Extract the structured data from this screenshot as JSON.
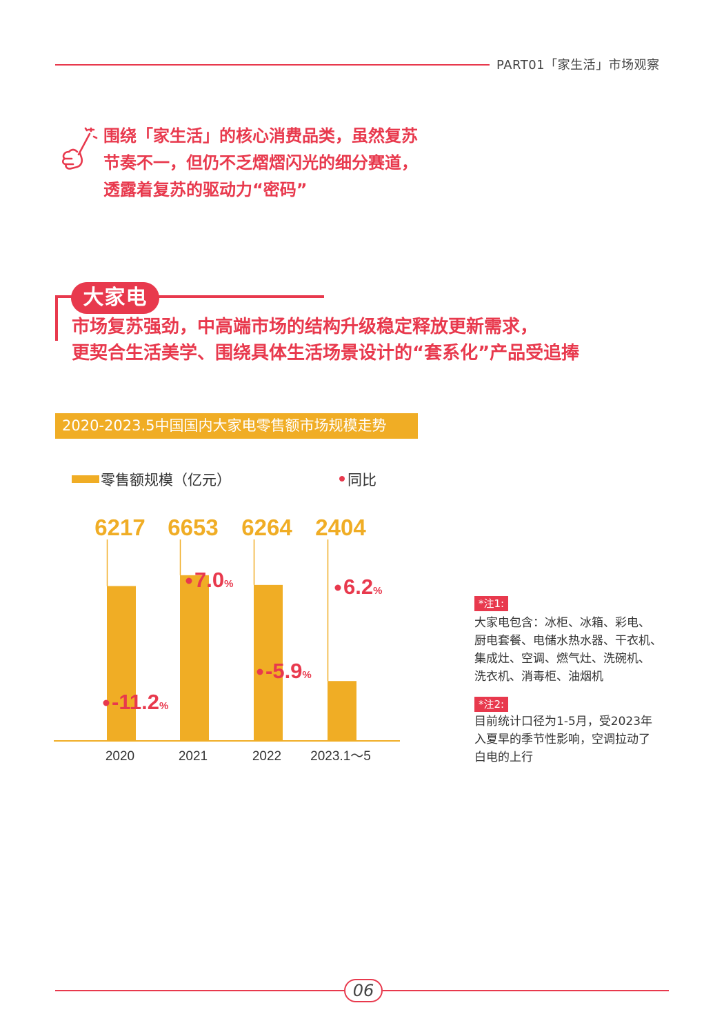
{
  "header": {
    "text": "PART01「家生活」市场观察"
  },
  "intro": {
    "lines": [
      "围绕「家生活」的核心消费品类，虽然复苏",
      "节奏不一，但仍不乏熠熠闪光的细分赛道，",
      "透露着复苏的驱动力“密码”"
    ]
  },
  "section": {
    "title": "大家电",
    "lines": [
      "市场复苏强劲，中高端市场的结构升级稳定释放更新需求，",
      "更契合生活美学、围绕具体生活场景设计的“套系化”产品受追捧"
    ]
  },
  "chart_title": "2020-2023.5中国国内大家电零售额市场规模走势",
  "legend": {
    "bar_label": "零售额规模（亿元）",
    "dot_label": "同比"
  },
  "colors": {
    "accent": "#e8394d",
    "bar": "#f0ad25"
  },
  "chart_data": {
    "type": "bar",
    "categories": [
      "2020",
      "2021",
      "2022",
      "2023.1～5"
    ],
    "series": [
      {
        "name": "零售额规模（亿元）",
        "values": [
          6217,
          6653,
          6264,
          2404
        ],
        "labels": [
          "6217",
          "6653",
          "6264",
          "2404"
        ]
      },
      {
        "name": "同比",
        "values": [
          -11.2,
          7.0,
          -5.9,
          6.2
        ],
        "labels": [
          "-11.2",
          "7.0",
          "-5.9",
          "6.2"
        ],
        "unit": "%"
      }
    ]
  },
  "notes": [
    {
      "tag": "*注1:",
      "lines": [
        "大家电包含：冰柜、冰箱、彩电、",
        "厨电套餐、电储水热水器、干衣机、",
        "集成灶、空调、燃气灶、洗碗机、",
        "洗衣机、消毒柜、油烟机"
      ]
    },
    {
      "tag": "*注2:",
      "lines": [
        "目前统计口径为1-5月，受2023年",
        "入夏早的季节性影响，空调拉动了",
        "白电的上行"
      ]
    }
  ],
  "footer": {
    "page_number": "06"
  }
}
